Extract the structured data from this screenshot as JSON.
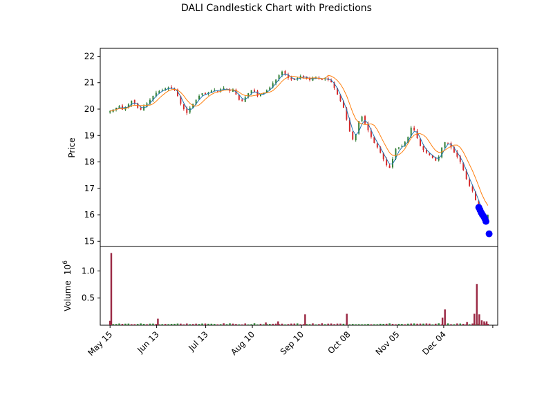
{
  "chart_data": {
    "type": "candlestick",
    "title": "DALI Candlestick Chart with Predictions",
    "price_panel": {
      "ylabel": "Price",
      "ylim": [
        14.8,
        22.3
      ],
      "yticks": [
        15,
        16,
        17,
        18,
        19,
        20,
        21,
        22
      ]
    },
    "volume_panel": {
      "ylabel": "Volume",
      "ylabel_multiplier": "10",
      "ylabel_exponent": "6",
      "ylim": [
        0,
        1.45
      ],
      "yticks": [
        0.5,
        1.0
      ],
      "ytick_labels": [
        "0.5",
        "1.0"
      ]
    },
    "xlim": [
      -4,
      158
    ],
    "xticks": [
      {
        "label": "May 15",
        "x": 0
      },
      {
        "label": "Jun 13",
        "x": 19
      },
      {
        "label": "Jul 13",
        "x": 39
      },
      {
        "label": "Aug 10",
        "x": 58
      },
      {
        "label": "Sep 10",
        "x": 78
      },
      {
        "label": "Oct 08",
        "x": 97
      },
      {
        "label": "Nov 05",
        "x": 117
      },
      {
        "label": "Dec 04",
        "x": 136
      }
    ],
    "extra_xtick": 156,
    "colors": {
      "up": "#2e7d32",
      "down": "#d62728",
      "ma_short": "#1f77b4",
      "ma_long": "#ff7f0e",
      "prediction": "#0000ff",
      "volume": "#9b2a45",
      "volume_up": "#2e7d32"
    },
    "prices": [
      19.92,
      19.98,
      20.05,
      20.12,
      19.98,
      20.08,
      20.18,
      20.32,
      20.2,
      20.05,
      19.98,
      20.1,
      20.22,
      20.35,
      20.5,
      20.62,
      20.68,
      20.72,
      20.78,
      20.82,
      20.78,
      20.72,
      20.5,
      20.2,
      20.0,
      19.85,
      20.05,
      20.2,
      20.35,
      20.5,
      20.6,
      20.55,
      20.62,
      20.7,
      20.72,
      20.68,
      20.75,
      20.8,
      20.72,
      20.68,
      20.75,
      20.55,
      20.35,
      20.3,
      20.45,
      20.6,
      20.72,
      20.65,
      20.5,
      20.55,
      20.62,
      20.72,
      20.82,
      20.98,
      21.12,
      21.28,
      21.42,
      21.3,
      21.18,
      21.12,
      21.1,
      21.18,
      21.25,
      21.22,
      21.15,
      21.1,
      21.18,
      21.2,
      21.15,
      21.12,
      21.18,
      21.1,
      21.02,
      20.8,
      20.55,
      20.3,
      20.05,
      19.6,
      19.15,
      18.85,
      19.05,
      19.55,
      19.72,
      19.45,
      19.2,
      18.95,
      18.72,
      18.55,
      18.35,
      18.1,
      17.88,
      17.78,
      18.12,
      18.5,
      18.55,
      18.6,
      18.75,
      18.95,
      19.3,
      19.2,
      18.9,
      18.6,
      18.45,
      18.35,
      18.25,
      18.15,
      18.05,
      18.2,
      18.55,
      18.75,
      18.72,
      18.55,
      18.35,
      18.2,
      18.0,
      17.7,
      17.35,
      17.1,
      16.9,
      16.55,
      16.2,
      15.9,
      15.85,
      16.0
    ],
    "n_days": 124,
    "predictions": [
      {
        "x": 150.3,
        "y": 16.28
      },
      {
        "x": 150.8,
        "y": 16.18
      },
      {
        "x": 151.3,
        "y": 16.08
      },
      {
        "x": 151.8,
        "y": 16.0
      },
      {
        "x": 152.4,
        "y": 15.92
      },
      {
        "x": 152.8,
        "y": 15.85
      },
      {
        "x": 153.2,
        "y": 15.75
      },
      {
        "x": 154.5,
        "y": 15.28
      }
    ],
    "volume_spikes": [
      {
        "x": 0.5,
        "v": 1.33
      },
      {
        "x": 0,
        "v": 0.08
      },
      {
        "x": 19.5,
        "v": 0.12
      },
      {
        "x": 63.5,
        "v": 0.05
      },
      {
        "x": 68.5,
        "v": 0.07
      },
      {
        "x": 79.5,
        "v": 0.2
      },
      {
        "x": 96.5,
        "v": 0.21
      },
      {
        "x": 135.5,
        "v": 0.14
      },
      {
        "x": 136.5,
        "v": 0.29
      },
      {
        "x": 145.5,
        "v": 0.06
      },
      {
        "x": 148.5,
        "v": 0.21
      },
      {
        "x": 149.5,
        "v": 0.76
      },
      {
        "x": 150.5,
        "v": 0.2
      },
      {
        "x": 151.5,
        "v": 0.09
      },
      {
        "x": 152.5,
        "v": 0.07
      },
      {
        "x": 153.5,
        "v": 0.07
      }
    ]
  }
}
